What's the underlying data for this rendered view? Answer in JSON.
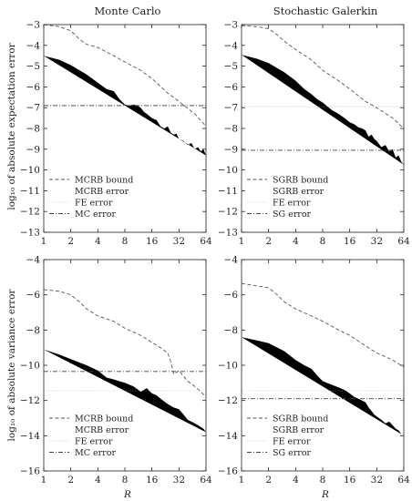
{
  "titles": {
    "left": "Monte Carlo",
    "right": "Stochastic Galerkin"
  },
  "ylabels": {
    "top": "log₁₀ of absolute expectation error",
    "bottom": "log₁₀ of absolute variance error"
  },
  "xlabel": "R",
  "colors": {
    "axis": "#222222",
    "bound": "#555555",
    "error": "#444444",
    "fe": "#aaaaaa"
  },
  "chart_data": [
    {
      "id": "mc-expectation",
      "type": "line",
      "title": "Monte Carlo",
      "xlabel": "",
      "ylabel": "log₁₀ of absolute expectation error",
      "xscale": "log2",
      "xlim": [
        1,
        64
      ],
      "ylim": [
        -13,
        -3
      ],
      "xticks": [
        1,
        2,
        4,
        8,
        16,
        32,
        64
      ],
      "xtick_labels": [
        "1",
        "2",
        "4",
        "8",
        "16",
        "32",
        "64"
      ],
      "yticks": [
        -3,
        -4,
        -5,
        -6,
        -7,
        -8,
        -9,
        -10,
        -11,
        -12,
        -13
      ],
      "ytick_labels": [
        "−3",
        "−4",
        "−5",
        "−6",
        "−7",
        "−8",
        "−9",
        "−10",
        "−11",
        "−12",
        "−13"
      ],
      "legend_position": "bottom-left",
      "series": [
        {
          "name": "MCRB bound",
          "style": "bound",
          "x": [
            1,
            1.5,
            2,
            2.5,
            3,
            4,
            6,
            8,
            12,
            16,
            24,
            32,
            48,
            64
          ],
          "y": [
            -3.0,
            -3.1,
            -3.3,
            -3.7,
            -3.95,
            -4.1,
            -4.5,
            -4.8,
            -5.2,
            -5.6,
            -6.3,
            -6.7,
            -7.3,
            -7.9
          ]
        },
        {
          "name": "MCRB error",
          "style": "error",
          "x": [
            1,
            1.5,
            2,
            3,
            4,
            5,
            6,
            7,
            8,
            9,
            10,
            11,
            12,
            13,
            14,
            16,
            18,
            20,
            22,
            24,
            26,
            28,
            30,
            32,
            36,
            40,
            44,
            48,
            52,
            56,
            60,
            64
          ],
          "y": [
            -4.5,
            -4.7,
            -4.95,
            -5.4,
            -5.8,
            -6.1,
            -6.2,
            -6.6,
            -6.85,
            -6.9,
            -6.85,
            -6.9,
            -7.0,
            -7.2,
            -7.3,
            -7.5,
            -7.6,
            -7.9,
            -8.0,
            -7.9,
            -8.2,
            -8.3,
            -8.25,
            -8.5,
            -8.6,
            -8.8,
            -8.7,
            -9.0,
            -8.9,
            -9.1,
            -9.0,
            -9.3
          ]
        },
        {
          "name": "FE error",
          "style": "fe",
          "x": [
            1,
            64
          ],
          "y": [
            -6.88,
            -6.88
          ]
        },
        {
          "name": "MC error",
          "style": "det",
          "x": [
            1,
            64
          ],
          "y": [
            -6.9,
            -6.9
          ]
        }
      ]
    },
    {
      "id": "sg-expectation",
      "type": "line",
      "title": "Stochastic Galerkin",
      "xlabel": "",
      "ylabel": "",
      "xscale": "log2",
      "xlim": [
        1,
        64
      ],
      "ylim": [
        -13,
        -3
      ],
      "xticks": [
        1,
        2,
        4,
        8,
        16,
        32,
        64
      ],
      "xtick_labels": [
        "1",
        "2",
        "4",
        "8",
        "16",
        "32",
        "64"
      ],
      "yticks": [
        -3,
        -4,
        -5,
        -6,
        -7,
        -8,
        -9,
        -10,
        -11,
        -12,
        -13
      ],
      "ytick_labels": [
        "−3",
        "−4",
        "−5",
        "−6",
        "−7",
        "−8",
        "−9",
        "−10",
        "−11",
        "−12",
        "−13"
      ],
      "legend_position": "bottom-left",
      "series": [
        {
          "name": "SGRB bound",
          "style": "bound",
          "x": [
            1,
            1.5,
            2,
            2.5,
            3,
            4,
            6,
            8,
            12,
            16,
            24,
            32,
            48,
            64
          ],
          "y": [
            -3.05,
            -3.1,
            -3.2,
            -3.5,
            -3.8,
            -4.2,
            -4.7,
            -5.2,
            -5.7,
            -6.1,
            -6.7,
            -7.0,
            -7.5,
            -8.0
          ]
        },
        {
          "name": "SGRB error",
          "style": "error",
          "x": [
            1,
            1.5,
            2,
            3,
            4,
            5,
            6,
            7,
            8,
            10,
            12,
            14,
            16,
            18,
            20,
            22,
            24,
            26,
            28,
            30,
            32,
            36,
            40,
            44,
            48,
            52,
            56,
            60,
            64
          ],
          "y": [
            -4.45,
            -4.65,
            -4.85,
            -5.3,
            -5.7,
            -6.1,
            -6.35,
            -6.6,
            -6.75,
            -7.1,
            -7.3,
            -7.5,
            -7.7,
            -7.8,
            -7.95,
            -8.0,
            -8.1,
            -8.4,
            -8.3,
            -8.5,
            -8.6,
            -8.9,
            -8.8,
            -9.1,
            -9.0,
            -9.4,
            -9.3,
            -9.6,
            -9.75
          ]
        },
        {
          "name": "FE error",
          "style": "fe",
          "x": [
            1,
            64
          ],
          "y": [
            -6.95,
            -6.95
          ]
        },
        {
          "name": "SG error",
          "style": "det",
          "x": [
            1,
            64
          ],
          "y": [
            -9.05,
            -9.05
          ]
        }
      ]
    },
    {
      "id": "mc-variance",
      "type": "line",
      "title": "",
      "xlabel": "R",
      "ylabel": "log₁₀ of absolute variance error",
      "xscale": "log2",
      "xlim": [
        1,
        64
      ],
      "ylim": [
        -16,
        -4
      ],
      "xticks": [
        1,
        2,
        4,
        8,
        16,
        32,
        64
      ],
      "xtick_labels": [
        "1",
        "2",
        "4",
        "8",
        "16",
        "32",
        "64"
      ],
      "yticks": [
        -4,
        -6,
        -8,
        -10,
        -12,
        -14,
        -16
      ],
      "ytick_labels": [
        "−4",
        "−6",
        "−8",
        "−10",
        "−12",
        "−14",
        "−16"
      ],
      "legend_position": "bottom-left",
      "series": [
        {
          "name": "MCRB bound",
          "style": "bound",
          "x": [
            1,
            1.5,
            2,
            2.5,
            3,
            4,
            6,
            8,
            12,
            16,
            20,
            24,
            26,
            28,
            32,
            40,
            48,
            56,
            64
          ],
          "y": [
            -5.7,
            -5.8,
            -6.0,
            -6.4,
            -6.8,
            -7.2,
            -7.5,
            -7.9,
            -8.3,
            -8.7,
            -9.0,
            -9.3,
            -9.8,
            -10.5,
            -10.3,
            -10.9,
            -11.2,
            -11.5,
            -11.8
          ]
        },
        {
          "name": "MCRB error",
          "style": "error",
          "x": [
            1,
            1.5,
            2,
            3,
            4,
            5,
            6,
            8,
            10,
            12,
            14,
            16,
            18,
            20,
            24,
            28,
            32,
            36,
            40,
            44,
            48,
            52,
            56,
            60,
            64
          ],
          "y": [
            -9.1,
            -9.4,
            -9.65,
            -10.0,
            -10.3,
            -10.7,
            -10.8,
            -11.0,
            -11.2,
            -11.5,
            -11.3,
            -11.6,
            -11.7,
            -11.9,
            -12.2,
            -12.4,
            -12.5,
            -12.8,
            -13.1,
            -13.2,
            -13.3,
            -13.4,
            -13.5,
            -13.6,
            -13.8
          ]
        },
        {
          "name": "FE error",
          "style": "fe",
          "x": [
            1,
            64
          ],
          "y": [
            -11.45,
            -11.45
          ]
        },
        {
          "name": "MC error",
          "style": "det",
          "x": [
            1,
            64
          ],
          "y": [
            -10.35,
            -10.35
          ]
        }
      ]
    },
    {
      "id": "sg-variance",
      "type": "line",
      "title": "",
      "xlabel": "R",
      "ylabel": "",
      "xscale": "log2",
      "xlim": [
        1,
        64
      ],
      "ylim": [
        -16,
        -4
      ],
      "xticks": [
        1,
        2,
        4,
        8,
        16,
        32,
        64
      ],
      "xtick_labels": [
        "1",
        "2",
        "4",
        "8",
        "16",
        "32",
        "64"
      ],
      "yticks": [
        -4,
        -6,
        -8,
        -10,
        -12,
        -14,
        -16
      ],
      "ytick_labels": [
        "−4",
        "−6",
        "−8",
        "−10",
        "−12",
        "−14",
        "−16"
      ],
      "legend_position": "bottom-left",
      "series": [
        {
          "name": "SGRB bound",
          "style": "bound",
          "x": [
            1,
            1.5,
            2,
            2.5,
            3,
            4,
            6,
            8,
            12,
            16,
            24,
            32,
            48,
            64
          ],
          "y": [
            -5.35,
            -5.5,
            -5.6,
            -6.0,
            -6.4,
            -6.8,
            -7.2,
            -7.5,
            -8.0,
            -8.3,
            -8.9,
            -9.3,
            -9.7,
            -10.1
          ]
        },
        {
          "name": "SGRB error",
          "style": "error",
          "x": [
            1,
            1.5,
            2,
            3,
            4,
            5,
            6,
            7,
            8,
            10,
            12,
            14,
            16,
            18,
            20,
            22,
            24,
            26,
            28,
            30,
            32,
            36,
            40,
            44,
            48,
            52,
            56,
            60,
            64
          ],
          "y": [
            -8.4,
            -8.6,
            -8.75,
            -9.2,
            -9.7,
            -10.0,
            -10.2,
            -10.6,
            -10.9,
            -11.1,
            -11.25,
            -11.4,
            -11.6,
            -11.8,
            -11.9,
            -12.0,
            -12.1,
            -12.4,
            -12.6,
            -12.8,
            -12.9,
            -13.1,
            -13.3,
            -13.2,
            -13.4,
            -13.6,
            -13.7,
            -13.9,
            -14.0
          ]
        },
        {
          "name": "FE error",
          "style": "fe",
          "x": [
            1,
            64
          ],
          "y": [
            -11.45,
            -11.45
          ]
        },
        {
          "name": "SG error",
          "style": "det",
          "x": [
            1,
            64
          ],
          "y": [
            -11.9,
            -11.9
          ]
        }
      ]
    }
  ]
}
